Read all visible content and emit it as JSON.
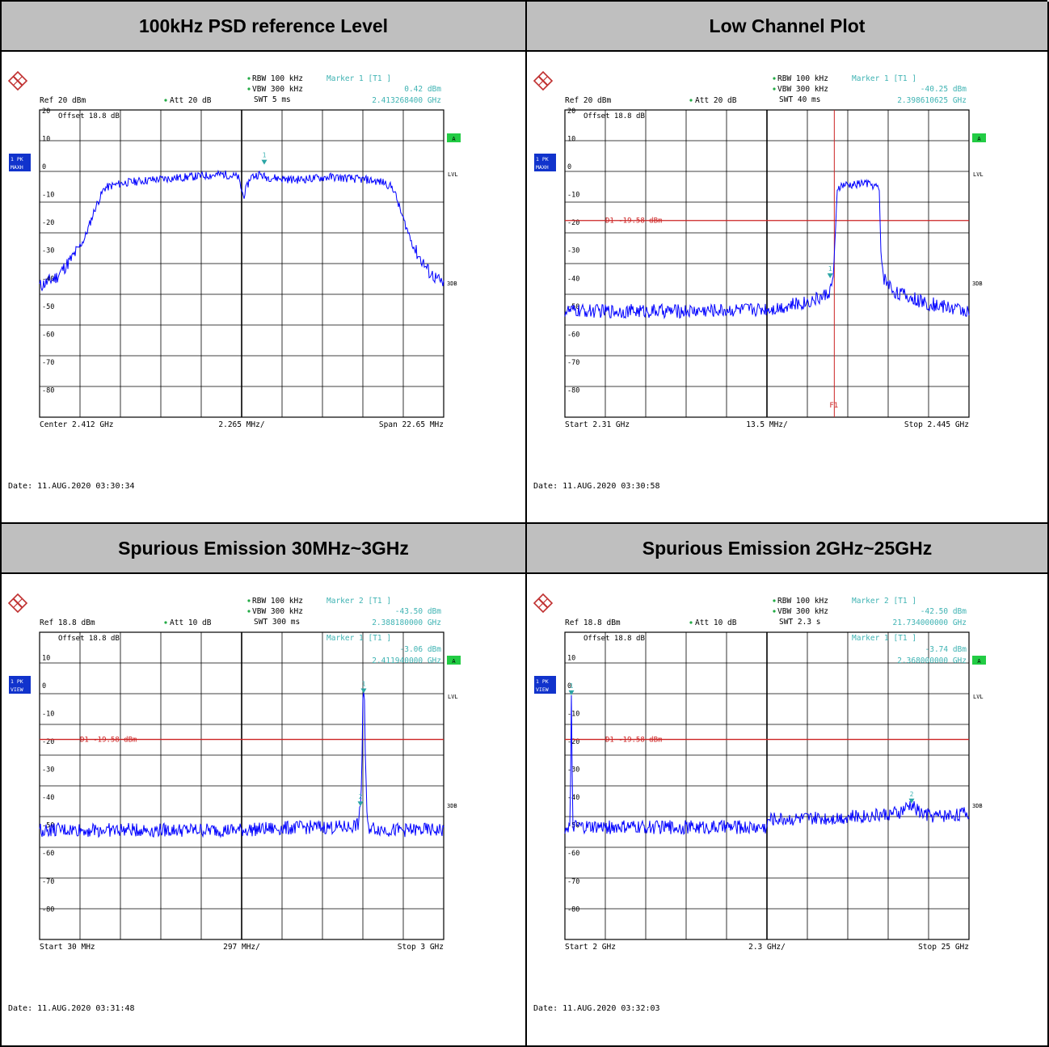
{
  "colors": {
    "header_bg": "#bfbfbf",
    "trace": "#0000ff",
    "marker_text": "#3fb3b3",
    "line_red": "#cc2222",
    "badge_blue": "#1133cc",
    "badge_green": "#22cc44",
    "grid": "#000000"
  },
  "icons": {
    "logo": "rohde-schwarz-logo-icon"
  },
  "chart_data": [
    {
      "type": "line",
      "panel_title": "100kHz PSD reference Level",
      "header": {
        "rbw": "RBW 100 kHz",
        "vbw": "VBW 300 kHz",
        "swt": "SWT 5 ms",
        "ref": "Ref  20 dBm",
        "att": "Att  20 dB",
        "marker_label": "Marker 1 [T1 ]",
        "marker_level": "0.42 dBm",
        "marker_freq": "2.413268400 GHz"
      },
      "offset_text": "Offset  18.8 dB",
      "trace_badge": [
        "1 PK",
        "MAXH"
      ],
      "side_labels": {
        "a": "A",
        "lvl": "LVL",
        "db3": "3DB"
      },
      "y_ticks": [
        "20",
        "10",
        "0",
        "-10",
        "-20",
        "-30",
        "-40",
        "-50",
        "-60",
        "-70",
        "-80"
      ],
      "ylim": [
        -90,
        20
      ],
      "x_label_left": "Center 2.412 GHz",
      "x_label_mid": "2.265 MHz/",
      "x_label_right": "Span 22.65 MHz",
      "date": "Date: 11.AUG.2020  03:30:34",
      "x_range": [
        2.400675,
        2.423325
      ],
      "x": [
        2.4007,
        2.4016,
        2.4025,
        2.4032,
        2.4038,
        2.4043,
        2.4048,
        2.4055,
        2.407,
        2.409,
        2.411,
        2.4118,
        2.4121,
        2.4125,
        2.413,
        2.4133,
        2.415,
        2.417,
        2.419,
        2.42,
        2.4205,
        2.421,
        2.4217,
        2.4225,
        2.4232
      ],
      "values": [
        -43,
        -40,
        -33,
        -26,
        -15,
        -8,
        -7,
        -6,
        -5,
        -4,
        -3,
        -4,
        -11,
        -4,
        -3,
        -4,
        -5,
        -4,
        -5,
        -6,
        -8,
        -18,
        -30,
        -38,
        -42
      ],
      "lines": [],
      "markers": [
        {
          "label": "1",
          "x": 2.413268,
          "y": 0.42
        }
      ]
    },
    {
      "type": "line",
      "panel_title": "Low Channel Plot",
      "header": {
        "rbw": "RBW 100 kHz",
        "vbw": "VBW 300 kHz",
        "swt": "SWT 40 ms",
        "ref": "Ref  20 dBm",
        "att": "Att  20 dB",
        "marker_label": "Marker 1 [T1 ]",
        "marker_level": "-40.25 dBm",
        "marker_freq": "2.398610625 GHz"
      },
      "offset_text": "Offset  18.8 dB",
      "trace_badge": [
        "1 PK",
        "MAXH"
      ],
      "side_labels": {
        "a": "A",
        "lvl": "LVL",
        "db3": "3DB"
      },
      "y_ticks": [
        "20",
        "10",
        "0",
        "-10",
        "-20",
        "-30",
        "-40",
        "-50",
        "-60",
        "-70",
        "-80"
      ],
      "ylim": [
        -90,
        20
      ],
      "x_label_left": "Start 2.31 GHz",
      "x_label_mid": "13.5 MHz/",
      "x_label_right": "Stop 2.445 GHz",
      "date": "Date: 11.AUG.2020  03:30:58",
      "x_range": [
        2.31,
        2.445
      ],
      "x": [
        2.31,
        2.33,
        2.35,
        2.37,
        2.38,
        2.39,
        2.396,
        2.3985,
        2.3995,
        2.4,
        2.401,
        2.403,
        2.406,
        2.41,
        2.413,
        2.415,
        2.4155,
        2.4165,
        2.42,
        2.425,
        2.43,
        2.435,
        2.44,
        2.445
      ],
      "values": [
        -52,
        -52,
        -52,
        -51.5,
        -51,
        -49,
        -47,
        -45,
        -41,
        -35,
        -8,
        -7,
        -7,
        -6,
        -7,
        -8,
        -30,
        -40,
        -45,
        -47,
        -49,
        -50,
        -51,
        -52
      ],
      "lines": [
        {
          "label": "D1  -19.58 dBm",
          "y": -19.58
        },
        {
          "label": "F1",
          "vx": 2.4
        }
      ],
      "markers": [
        {
          "label": "1",
          "x": 2.39861,
          "y": -40.25
        }
      ]
    },
    {
      "type": "line",
      "panel_title": "Spurious Emission 30MHz~3GHz",
      "header": {
        "rbw": "RBW 100 kHz",
        "vbw": "VBW 300 kHz",
        "swt": "SWT 300 ms",
        "ref": "Ref  18.8 dBm",
        "att": "Att  10 dB",
        "marker_label": "Marker 2 [T1 ]",
        "marker_level": "-43.50 dBm",
        "marker_freq": "2.388180000 GHz"
      },
      "offset_text": "Offset  18.8 dB",
      "inner_marker": {
        "label": "Marker 1 [T1 ]",
        "level": "-3.06 dBm",
        "freq": "2.411940000 GHz"
      },
      "trace_badge": [
        "1 PK",
        "VIEW"
      ],
      "side_labels": {
        "a": "A",
        "lvl": "LVL",
        "db3": "3DB"
      },
      "y_ticks": [
        "10",
        "0",
        "-10",
        "-20",
        "-30",
        "-40",
        "-50",
        "-60",
        "-70",
        "-80"
      ],
      "ylim": [
        -91.2,
        18.8
      ],
      "x_label_left": "Start 30 MHz",
      "x_label_mid": "297 MHz/",
      "x_label_right": "Stop 3 GHz",
      "date": "Date: 11.AUG.2020  03:31:48",
      "x_range": [
        0.03,
        3.0
      ],
      "x": [
        0.03,
        0.5,
        1.0,
        1.5,
        2.0,
        2.3,
        2.37,
        2.39,
        2.4,
        2.405,
        2.412,
        2.418,
        2.425,
        2.44,
        2.6,
        2.8,
        3.0
      ],
      "values": [
        -52,
        -52,
        -52,
        -52,
        -51,
        -51,
        -50,
        -44,
        -25,
        -5,
        -3,
        -5,
        -30,
        -51,
        -52,
        -52,
        -52
      ],
      "lines": [
        {
          "label": "D1  -19.58 dBm",
          "y": -19.58
        }
      ],
      "markers": [
        {
          "label": "1",
          "x": 2.41194,
          "y": -3.06
        },
        {
          "label": "2",
          "x": 2.38818,
          "y": -43.5
        }
      ]
    },
    {
      "type": "line",
      "panel_title": "Spurious Emission 2GHz~25GHz",
      "header": {
        "rbw": "RBW 100 kHz",
        "vbw": "VBW 300 kHz",
        "swt": "SWT 2.3 s",
        "ref": "Ref  18.8 dBm",
        "att": "Att  10 dB",
        "marker_label": "Marker 2 [T1 ]",
        "marker_level": "-42.50 dBm",
        "marker_freq": "21.734000000 GHz"
      },
      "offset_text": "Offset  18.8 dB",
      "inner_marker": {
        "label": "Marker 1 [T1 ]",
        "level": "-3.74 dBm",
        "freq": "2.368000000 GHz"
      },
      "trace_badge": [
        "1 PK",
        "VIEW"
      ],
      "side_labels": {
        "a": "A",
        "lvl": "LVL",
        "db3": "3DB"
      },
      "y_ticks": [
        "10",
        "0",
        "-10",
        "-20",
        "-30",
        "-40",
        "-50",
        "-60",
        "-70",
        "-80"
      ],
      "ylim": [
        -91.2,
        18.8
      ],
      "x_label_left": "Start 2 GHz",
      "x_label_mid": "2.3 GHz/",
      "x_label_right": "Stop 25 GHz",
      "date": "Date: 11.AUG.2020  03:32:03",
      "x_range": [
        2.0,
        25.0
      ],
      "x": [
        2.0,
        2.3,
        2.37,
        2.44,
        2.6,
        5,
        8,
        11,
        13.5,
        13.6,
        16,
        19,
        21,
        21.7,
        22.3,
        23,
        25
      ],
      "values": [
        -51,
        -51,
        -3.7,
        -51,
        -51,
        -51,
        -51,
        -51,
        -51,
        -48,
        -48,
        -47,
        -46,
        -43,
        -46,
        -47,
        -46
      ],
      "lines": [
        {
          "label": "D1  -19.58 dBm",
          "y": -19.58
        }
      ],
      "markers": [
        {
          "label": "1",
          "x": 2.368,
          "y": -3.74
        },
        {
          "label": "2",
          "x": 21.734,
          "y": -42.5
        }
      ]
    }
  ]
}
